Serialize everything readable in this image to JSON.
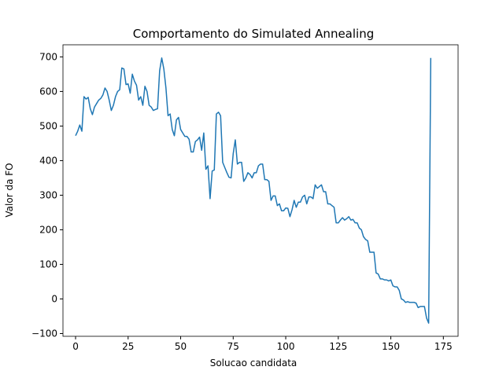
{
  "chart_data": {
    "type": "line",
    "title": "Comportamento do Simulated Annealing",
    "xlabel": "Solucao candidata",
    "ylabel": "Valor da FO",
    "x": [
      0,
      1,
      2,
      3,
      4,
      5,
      6,
      7,
      8,
      9,
      10,
      11,
      12,
      13,
      14,
      15,
      16,
      17,
      18,
      19,
      20,
      21,
      22,
      23,
      24,
      25,
      26,
      27,
      28,
      29,
      30,
      31,
      32,
      33,
      34,
      35,
      36,
      37,
      38,
      39,
      40,
      41,
      42,
      43,
      44,
      45,
      46,
      47,
      48,
      49,
      50,
      51,
      52,
      53,
      54,
      55,
      56,
      57,
      58,
      59,
      60,
      61,
      62,
      63,
      64,
      65,
      66,
      67,
      68,
      69,
      70,
      71,
      72,
      73,
      74,
      75,
      76,
      77,
      78,
      79,
      80,
      81,
      82,
      83,
      84,
      85,
      86,
      87,
      88,
      89,
      90,
      91,
      92,
      93,
      94,
      95,
      96,
      97,
      98,
      99,
      100,
      101,
      102,
      103,
      104,
      105,
      106,
      107,
      108,
      109,
      110,
      111,
      112,
      113,
      114,
      115,
      116,
      117,
      118,
      119,
      120,
      121,
      122,
      123,
      124,
      125,
      126,
      127,
      128,
      129,
      130,
      131,
      132,
      133,
      134,
      135,
      136,
      137,
      138,
      139,
      140,
      141,
      142,
      143,
      144,
      145,
      146,
      147,
      148,
      149,
      150,
      151,
      152,
      153,
      154,
      155,
      156,
      157,
      158,
      159,
      160,
      161,
      162,
      163,
      164,
      165,
      166,
      167,
      168,
      169
    ],
    "series": [
      {
        "color": "#1f77b4",
        "values": [
          472,
          485,
          503,
          485,
          585,
          578,
          583,
          550,
          533,
          555,
          565,
          575,
          580,
          590,
          610,
          600,
          575,
          545,
          560,
          585,
          600,
          605,
          668,
          665,
          620,
          622,
          595,
          650,
          630,
          618,
          575,
          585,
          560,
          615,
          600,
          560,
          555,
          545,
          548,
          550,
          660,
          697,
          665,
          610,
          530,
          535,
          490,
          472,
          518,
          525,
          490,
          480,
          470,
          470,
          462,
          425,
          425,
          455,
          460,
          468,
          430,
          480,
          375,
          385,
          290,
          370,
          373,
          535,
          540,
          530,
          395,
          380,
          365,
          352,
          350,
          420,
          460,
          390,
          395,
          395,
          340,
          350,
          365,
          360,
          350,
          365,
          365,
          385,
          390,
          390,
          345,
          345,
          340,
          285,
          298,
          298,
          270,
          275,
          255,
          255,
          263,
          262,
          238,
          258,
          285,
          265,
          280,
          280,
          295,
          300,
          275,
          295,
          295,
          290,
          330,
          320,
          325,
          330,
          310,
          310,
          275,
          275,
          270,
          265,
          220,
          220,
          228,
          235,
          228,
          232,
          238,
          228,
          230,
          220,
          220,
          205,
          200,
          180,
          172,
          168,
          135,
          135,
          135,
          75,
          72,
          58,
          58,
          55,
          55,
          52,
          55,
          38,
          35,
          35,
          25,
          0,
          -3,
          -10,
          -8,
          -10,
          -10,
          -10,
          -12,
          -25,
          -22,
          -22,
          -22,
          -55,
          -70,
          697
        ]
      }
    ],
    "xlim": [
      -6,
      182
    ],
    "ylim": [
      -108,
      735
    ],
    "xticks": [
      0,
      25,
      50,
      75,
      100,
      125,
      150,
      175
    ],
    "yticks": [
      {
        "value": -100,
        "label": "−100"
      },
      0,
      100,
      200,
      300,
      400,
      500,
      600,
      700
    ]
  }
}
